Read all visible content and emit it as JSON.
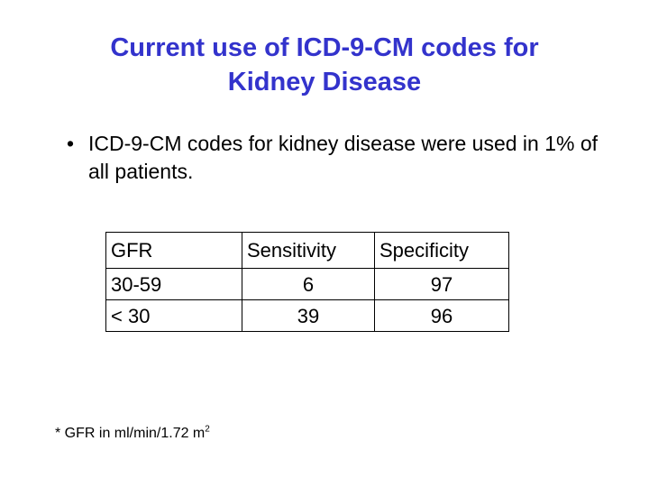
{
  "slide": {
    "title_line1": "Current use of ICD-9-CM codes for",
    "title_line2": "Kidney Disease",
    "bullets": [
      "ICD-9-CM codes for kidney disease were used in 1% of all patients."
    ],
    "bullet_symbol": "•",
    "table": {
      "headers": [
        "GFR",
        "Sensitivity",
        "Specificity"
      ],
      "rows": [
        [
          "30-59",
          "6",
          "97"
        ],
        [
          "< 30",
          "39",
          "96"
        ]
      ]
    },
    "footnote": {
      "text": "* GFR in ml/min/1.72 m",
      "superscript": "2"
    },
    "colors": {
      "title": "#3333cc",
      "text": "#000000",
      "background": "#ffffff"
    }
  }
}
